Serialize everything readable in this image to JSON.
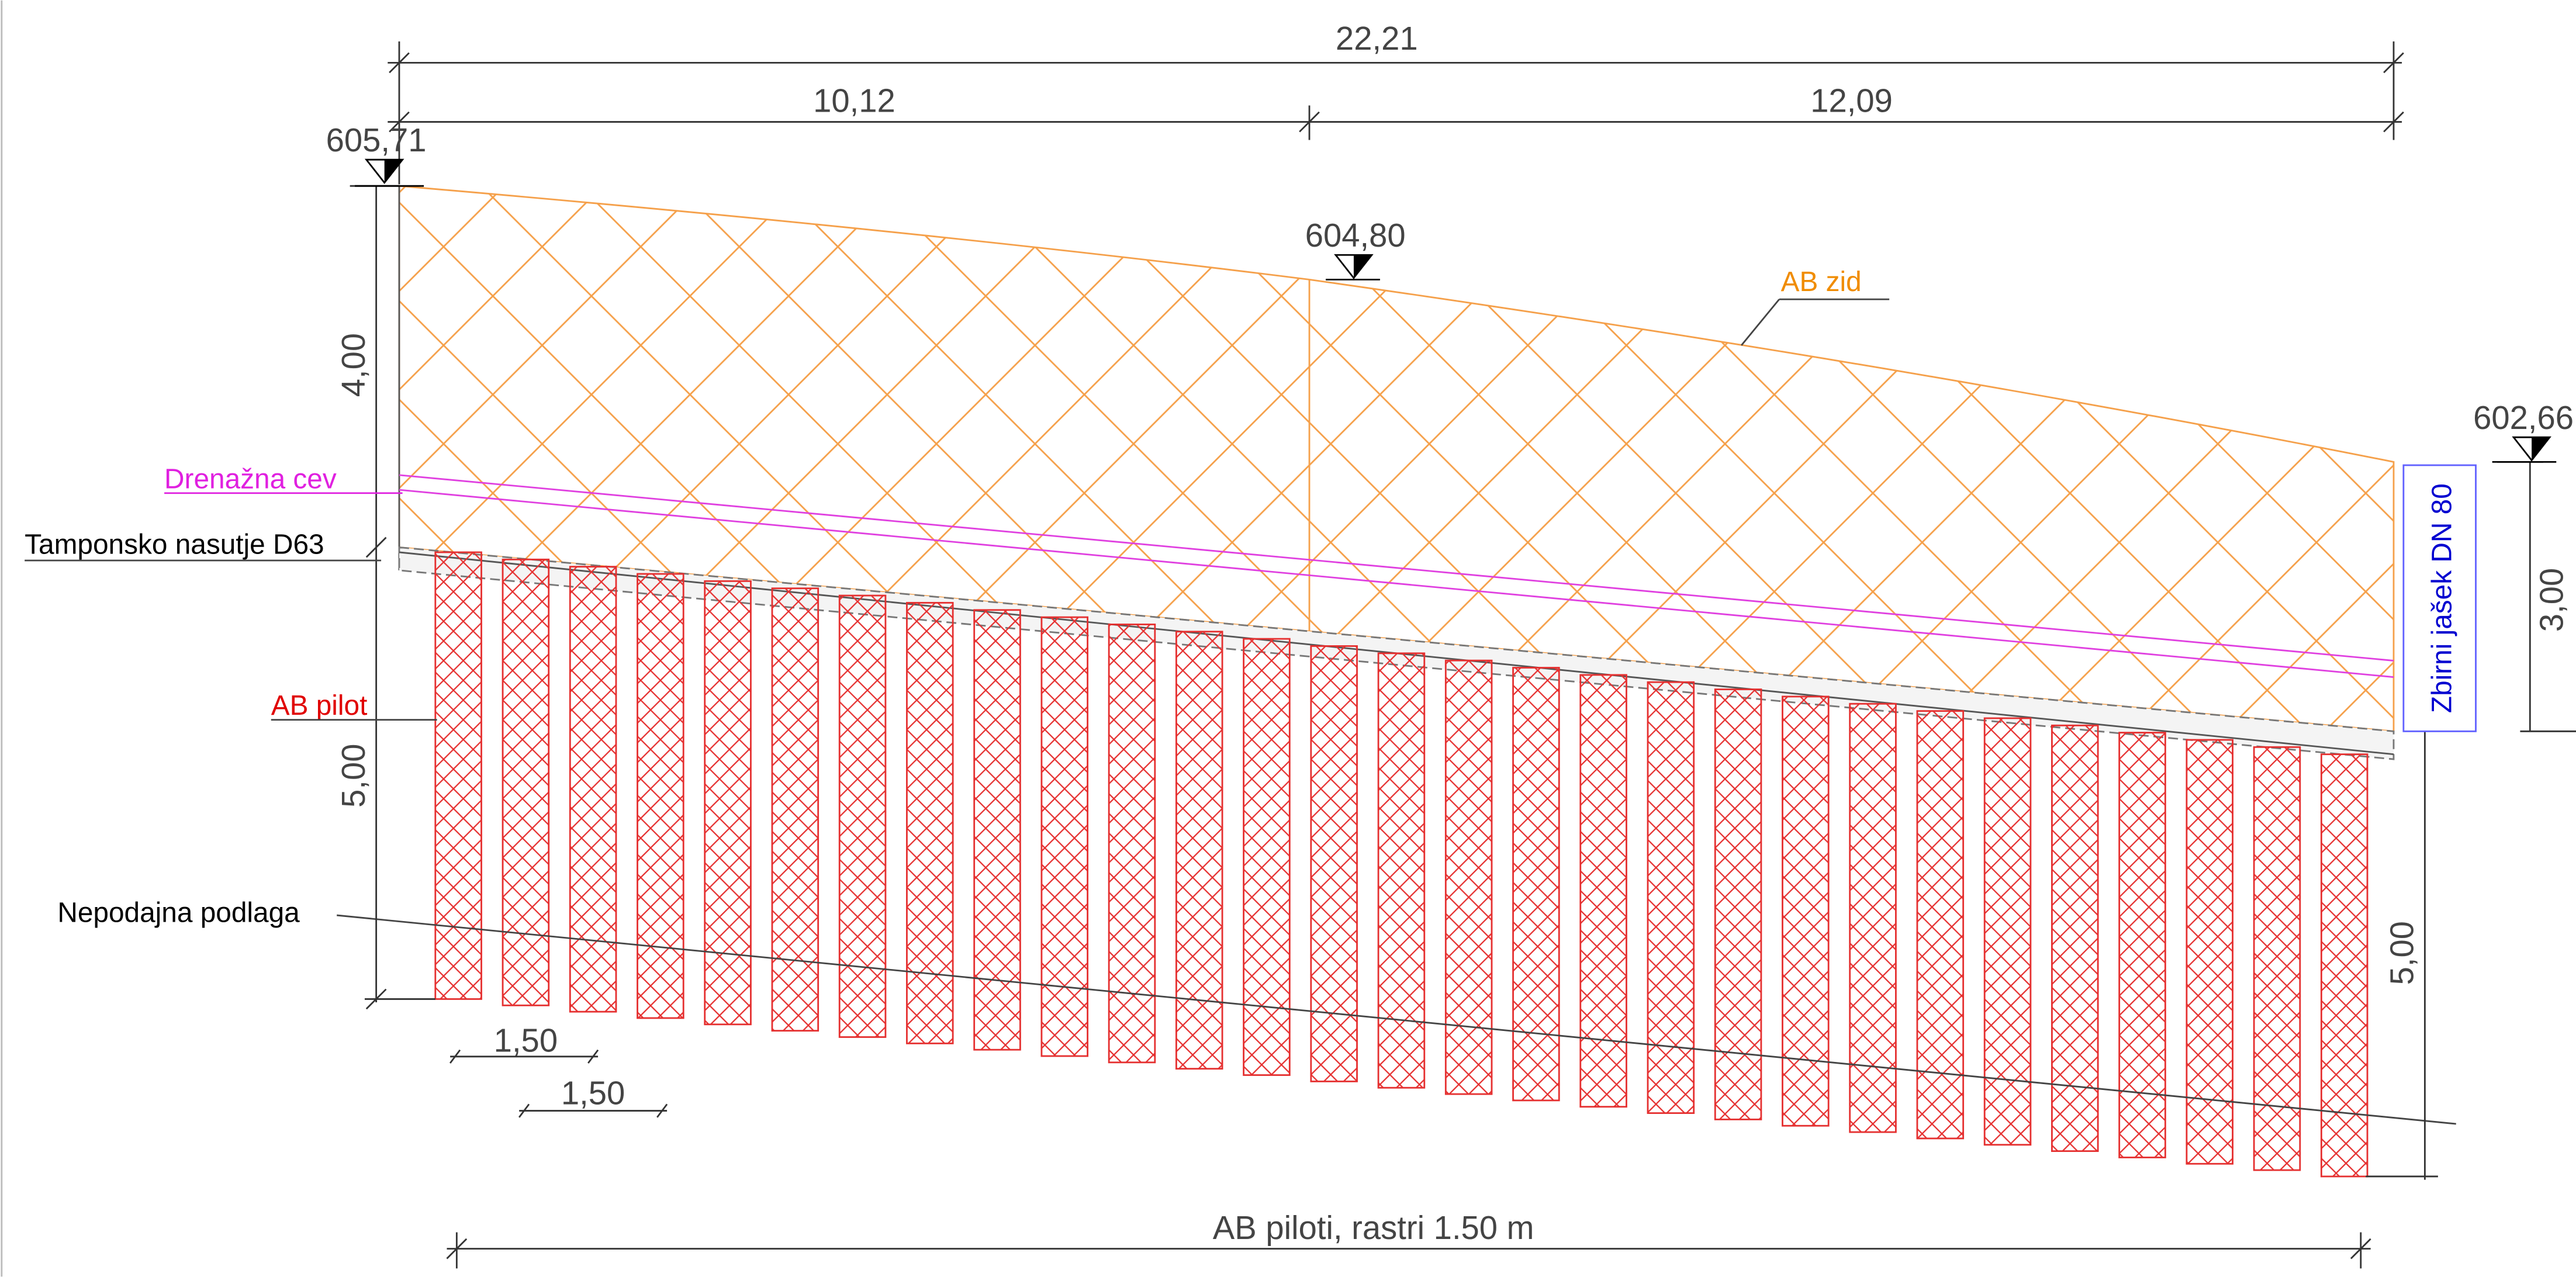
{
  "dimensions": {
    "total_length": "22,21",
    "left_length": "10,12",
    "right_length": "12,09",
    "wall_height": "4,00",
    "pile_length_left": "5,00",
    "right_height": "3,00",
    "pile_length_right": "5,00",
    "spacing_1": "1,50",
    "spacing_2": "1,50",
    "piles_note": "AB piloti, rastri 1.50 m"
  },
  "elevations": {
    "left": "605,71",
    "middle": "604,80",
    "right": "602,66"
  },
  "labels": {
    "wall": "AB zid",
    "drain": "Drenažna cev",
    "gravel": "Tamponsko nasutje D63",
    "pile": "AB pilot",
    "bedrock": "Nepodajna podlaga",
    "shaft": "Zbirni jašek DN 80"
  }
}
